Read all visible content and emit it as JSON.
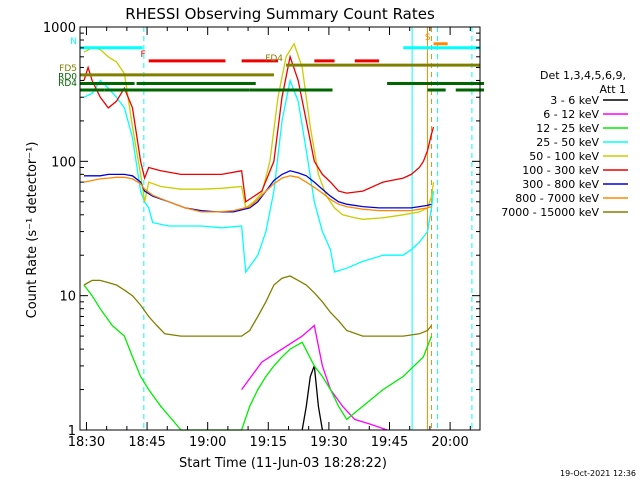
{
  "chart_data": {
    "type": "line",
    "title": "RHESSI Observing Summary Count Rates",
    "xlabel": "Start Time (11-Jun-03 18:28:22)",
    "ylabel": "Count Rate (s⁻¹ detector⁻¹)",
    "y_scale": "log",
    "ylim": [
      1,
      1000
    ],
    "xlim_minutes": [
      0,
      99
    ],
    "x_tick_labels": [
      "18:30",
      "18:45",
      "19:00",
      "19:15",
      "19:30",
      "19:45",
      "20:00"
    ],
    "x_tick_minutes": [
      1.6,
      16.6,
      31.6,
      46.6,
      61.6,
      76.6,
      91.6
    ],
    "y_tick_labels": [
      "1",
      "10",
      "100",
      "1000"
    ],
    "y_tick_values": [
      1,
      10,
      100,
      1000
    ],
    "timestamp": "19-Oct-2021 12:36",
    "legend": {
      "header": [
        "Det 1,3,4,5,6,9,",
        "Att 1"
      ],
      "entries": [
        {
          "label": "3 - 6 keV",
          "color": "#000000"
        },
        {
          "label": "6 - 12 keV",
          "color": "#ff00ff"
        },
        {
          "label": "12 - 25 keV",
          "color": "#00ee00"
        },
        {
          "label": "25 - 50 keV",
          "color": "#00ffff"
        },
        {
          "label": "50 - 100 keV",
          "color": "#cccc00"
        },
        {
          "label": "100 - 300 keV",
          "color": "#ee0000"
        },
        {
          "label": "300 - 800 keV",
          "color": "#0000dd"
        },
        {
          "label": "800 - 7000 keV",
          "color": "#ff8800"
        },
        {
          "label": "7000 - 15000 keV",
          "color": "#808000"
        }
      ]
    },
    "flags": [
      {
        "label": "N",
        "color": "#00ffff",
        "y": 700,
        "segments": [
          [
            0,
            15.5
          ],
          [
            80,
            99
          ]
        ]
      },
      {
        "label": "S",
        "color": "#ff8800",
        "y": 750,
        "segments": [
          [
            87.5,
            91
          ]
        ]
      },
      {
        "label": "F",
        "color": "#ee0000",
        "y": 560,
        "segments": [
          [
            17,
            36
          ],
          [
            40,
            49
          ],
          [
            58,
            63
          ],
          [
            68,
            74
          ]
        ]
      },
      {
        "label": "FD4",
        "color": "#808000",
        "y": 520,
        "segments": [
          [
            51,
            99
          ]
        ]
      },
      {
        "label": "FD5",
        "color": "#808000",
        "y": 440,
        "segments": [
          [
            0,
            48
          ]
        ]
      },
      {
        "label": "RD0",
        "color": "#006600",
        "y": 380,
        "segments": [
          [
            0,
            13.5
          ],
          [
            14,
            43.5
          ],
          [
            76,
            100
          ]
        ]
      },
      {
        "label": "RD4",
        "color": "#006600",
        "y": 340,
        "segments": [
          [
            0,
            6
          ],
          [
            6,
            13
          ],
          [
            13,
            42
          ],
          [
            42,
            62.5
          ],
          [
            86,
            90.5
          ],
          [
            93,
            100
          ]
        ]
      }
    ],
    "vertical_markers": [
      {
        "color": "#00ffff",
        "style": "dashed",
        "minute": 15.8
      },
      {
        "color": "#00ffff",
        "style": "solid",
        "minute": 82.2
      },
      {
        "color": "#ff8800",
        "style": "solid",
        "minute": 86.0
      },
      {
        "color": "#ff8800",
        "style": "dashed",
        "minute": 87.0
      },
      {
        "color": "#00ffff",
        "style": "dashed",
        "minute": 88.5
      },
      {
        "color": "#00ffff",
        "style": "dashed",
        "minute": 97.0
      }
    ],
    "series": [
      {
        "name": "3 - 6 keV",
        "color": "#000000",
        "points": [
          [
            55,
            1
          ],
          [
            56,
            1.5
          ],
          [
            57,
            2.5
          ],
          [
            58,
            3
          ],
          [
            59,
            1.5
          ],
          [
            60,
            1
          ]
        ]
      },
      {
        "name": "6 - 12 keV",
        "color": "#ff00ff",
        "points": [
          [
            40,
            2
          ],
          [
            45,
            3.2
          ],
          [
            50,
            4
          ],
          [
            55,
            5
          ],
          [
            58,
            6
          ],
          [
            60,
            3
          ],
          [
            62,
            2
          ],
          [
            65,
            1.5
          ],
          [
            68,
            1.2
          ],
          [
            72,
            1.1
          ],
          [
            76,
            1
          ]
        ]
      },
      {
        "name": "12 - 25 keV",
        "color": "#00ee00",
        "points": [
          [
            1,
            12
          ],
          [
            3,
            10
          ],
          [
            5,
            8
          ],
          [
            8,
            6
          ],
          [
            11,
            5
          ],
          [
            13,
            3.5
          ],
          [
            15,
            2.5
          ],
          [
            17,
            2
          ],
          [
            20,
            1.5
          ],
          [
            25,
            1
          ],
          [
            35,
            1
          ],
          [
            40,
            1
          ],
          [
            42,
            1.5
          ],
          [
            44,
            2
          ],
          [
            46,
            2.5
          ],
          [
            48,
            3
          ],
          [
            50,
            3.5
          ],
          [
            52,
            4
          ],
          [
            55,
            4.5
          ],
          [
            58,
            3
          ],
          [
            60,
            2.5
          ],
          [
            62,
            2
          ],
          [
            64,
            1.5
          ],
          [
            66,
            1.2
          ],
          [
            70,
            1.5
          ],
          [
            75,
            2
          ],
          [
            80,
            2.5
          ],
          [
            85,
            3.5
          ],
          [
            87,
            5
          ]
        ]
      },
      {
        "name": "25 - 50 keV",
        "color": "#00ffff",
        "points": [
          [
            1,
            300
          ],
          [
            3,
            320
          ],
          [
            5,
            400
          ],
          [
            7,
            350
          ],
          [
            9,
            300
          ],
          [
            11,
            250
          ],
          [
            13,
            150
          ],
          [
            15,
            60
          ],
          [
            16,
            50
          ],
          [
            17,
            45
          ],
          [
            18,
            35
          ],
          [
            22,
            33
          ],
          [
            30,
            33
          ],
          [
            35,
            32
          ],
          [
            40,
            33
          ],
          [
            41,
            15
          ],
          [
            44,
            20
          ],
          [
            46,
            30
          ],
          [
            48,
            60
          ],
          [
            50,
            200
          ],
          [
            52,
            400
          ],
          [
            54,
            280
          ],
          [
            56,
            120
          ],
          [
            58,
            50
          ],
          [
            60,
            30
          ],
          [
            62,
            22
          ],
          [
            63,
            15
          ],
          [
            66,
            16
          ],
          [
            70,
            18
          ],
          [
            75,
            20
          ],
          [
            80,
            20
          ],
          [
            82,
            22
          ],
          [
            84,
            25
          ],
          [
            86,
            30
          ],
          [
            87,
            45
          ],
          [
            87.5,
            60
          ]
        ]
      },
      {
        "name": "50 - 100 keV",
        "color": "#cccc00",
        "points": [
          [
            1,
            650
          ],
          [
            3,
            700
          ],
          [
            5,
            680
          ],
          [
            7,
            600
          ],
          [
            9,
            550
          ],
          [
            11,
            450
          ],
          [
            13,
            180
          ],
          [
            15,
            80
          ],
          [
            16,
            50
          ],
          [
            17,
            70
          ],
          [
            20,
            65
          ],
          [
            25,
            62
          ],
          [
            30,
            62
          ],
          [
            35,
            63
          ],
          [
            40,
            65
          ],
          [
            41,
            45
          ],
          [
            43,
            50
          ],
          [
            45,
            58
          ],
          [
            47,
            100
          ],
          [
            49,
            300
          ],
          [
            51,
            600
          ],
          [
            53,
            750
          ],
          [
            55,
            500
          ],
          [
            57,
            180
          ],
          [
            59,
            80
          ],
          [
            61,
            55
          ],
          [
            63,
            45
          ],
          [
            65,
            40
          ],
          [
            68,
            38
          ],
          [
            70,
            37
          ],
          [
            75,
            38
          ],
          [
            80,
            40
          ],
          [
            84,
            42
          ],
          [
            86,
            45
          ],
          [
            87,
            55
          ],
          [
            87.5,
            70
          ]
        ]
      },
      {
        "name": "100 - 300 keV",
        "color": "#ee0000",
        "points": [
          [
            1,
            400
          ],
          [
            2,
            500
          ],
          [
            3,
            400
          ],
          [
            5,
            300
          ],
          [
            7,
            250
          ],
          [
            9,
            280
          ],
          [
            11,
            350
          ],
          [
            13,
            250
          ],
          [
            15,
            100
          ],
          [
            16,
            75
          ],
          [
            17,
            90
          ],
          [
            20,
            85
          ],
          [
            25,
            80
          ],
          [
            30,
            80
          ],
          [
            35,
            80
          ],
          [
            40,
            85
          ],
          [
            41,
            50
          ],
          [
            45,
            60
          ],
          [
            48,
            100
          ],
          [
            50,
            300
          ],
          [
            52,
            600
          ],
          [
            54,
            400
          ],
          [
            56,
            200
          ],
          [
            58,
            100
          ],
          [
            60,
            80
          ],
          [
            62,
            70
          ],
          [
            64,
            60
          ],
          [
            66,
            58
          ],
          [
            70,
            60
          ],
          [
            75,
            70
          ],
          [
            80,
            75
          ],
          [
            82,
            80
          ],
          [
            84,
            90
          ],
          [
            85,
            100
          ],
          [
            86,
            120
          ],
          [
            87,
            160
          ],
          [
            87.5,
            180
          ]
        ]
      },
      {
        "name": "300 - 800 keV",
        "color": "#0000dd",
        "points": [
          [
            1,
            78
          ],
          [
            3,
            78
          ],
          [
            5,
            78
          ],
          [
            7,
            80
          ],
          [
            9,
            80
          ],
          [
            11,
            80
          ],
          [
            13,
            78
          ],
          [
            15,
            70
          ],
          [
            16,
            60
          ],
          [
            18,
            55
          ],
          [
            22,
            50
          ],
          [
            26,
            45
          ],
          [
            30,
            43
          ],
          [
            34,
            42
          ],
          [
            38,
            42
          ],
          [
            42,
            45
          ],
          [
            44,
            50
          ],
          [
            46,
            60
          ],
          [
            48,
            72
          ],
          [
            50,
            80
          ],
          [
            52,
            85
          ],
          [
            54,
            82
          ],
          [
            56,
            78
          ],
          [
            58,
            70
          ],
          [
            60,
            62
          ],
          [
            62,
            55
          ],
          [
            64,
            50
          ],
          [
            66,
            48
          ],
          [
            70,
            46
          ],
          [
            74,
            45
          ],
          [
            78,
            45
          ],
          [
            82,
            45
          ],
          [
            84,
            46
          ],
          [
            86,
            47
          ],
          [
            87,
            48
          ]
        ]
      },
      {
        "name": "800 - 7000 keV",
        "color": "#ff8800",
        "points": [
          [
            1,
            70
          ],
          [
            3,
            72
          ],
          [
            5,
            74
          ],
          [
            7,
            75
          ],
          [
            9,
            76
          ],
          [
            11,
            76
          ],
          [
            13,
            74
          ],
          [
            15,
            68
          ],
          [
            16,
            62
          ],
          [
            18,
            56
          ],
          [
            22,
            50
          ],
          [
            26,
            45
          ],
          [
            30,
            42
          ],
          [
            34,
            42
          ],
          [
            38,
            43
          ],
          [
            42,
            46
          ],
          [
            44,
            52
          ],
          [
            46,
            60
          ],
          [
            48,
            68
          ],
          [
            50,
            75
          ],
          [
            52,
            78
          ],
          [
            54,
            76
          ],
          [
            56,
            70
          ],
          [
            58,
            64
          ],
          [
            60,
            58
          ],
          [
            62,
            52
          ],
          [
            64,
            48
          ],
          [
            66,
            46
          ],
          [
            70,
            44
          ],
          [
            74,
            43
          ],
          [
            78,
            43
          ],
          [
            82,
            43
          ],
          [
            84,
            44
          ],
          [
            86,
            45
          ],
          [
            87,
            46
          ]
        ]
      },
      {
        "name": "7000 - 15000 keV",
        "color": "#808000",
        "points": [
          [
            1,
            12
          ],
          [
            3,
            13
          ],
          [
            5,
            13
          ],
          [
            7,
            12.5
          ],
          [
            9,
            12
          ],
          [
            11,
            11
          ],
          [
            13,
            10
          ],
          [
            15,
            8.5
          ],
          [
            17,
            7
          ],
          [
            19,
            6
          ],
          [
            21,
            5.2
          ],
          [
            25,
            5
          ],
          [
            30,
            5
          ],
          [
            35,
            5
          ],
          [
            40,
            5
          ],
          [
            42,
            5.5
          ],
          [
            44,
            7
          ],
          [
            46,
            9
          ],
          [
            48,
            12
          ],
          [
            50,
            13.5
          ],
          [
            52,
            14
          ],
          [
            54,
            13
          ],
          [
            56,
            12
          ],
          [
            58,
            10.5
          ],
          [
            60,
            9
          ],
          [
            62,
            7.5
          ],
          [
            64,
            6.5
          ],
          [
            66,
            5.5
          ],
          [
            70,
            5
          ],
          [
            75,
            5
          ],
          [
            80,
            5
          ],
          [
            84,
            5.2
          ],
          [
            86,
            5.5
          ],
          [
            87,
            6
          ]
        ]
      }
    ]
  }
}
